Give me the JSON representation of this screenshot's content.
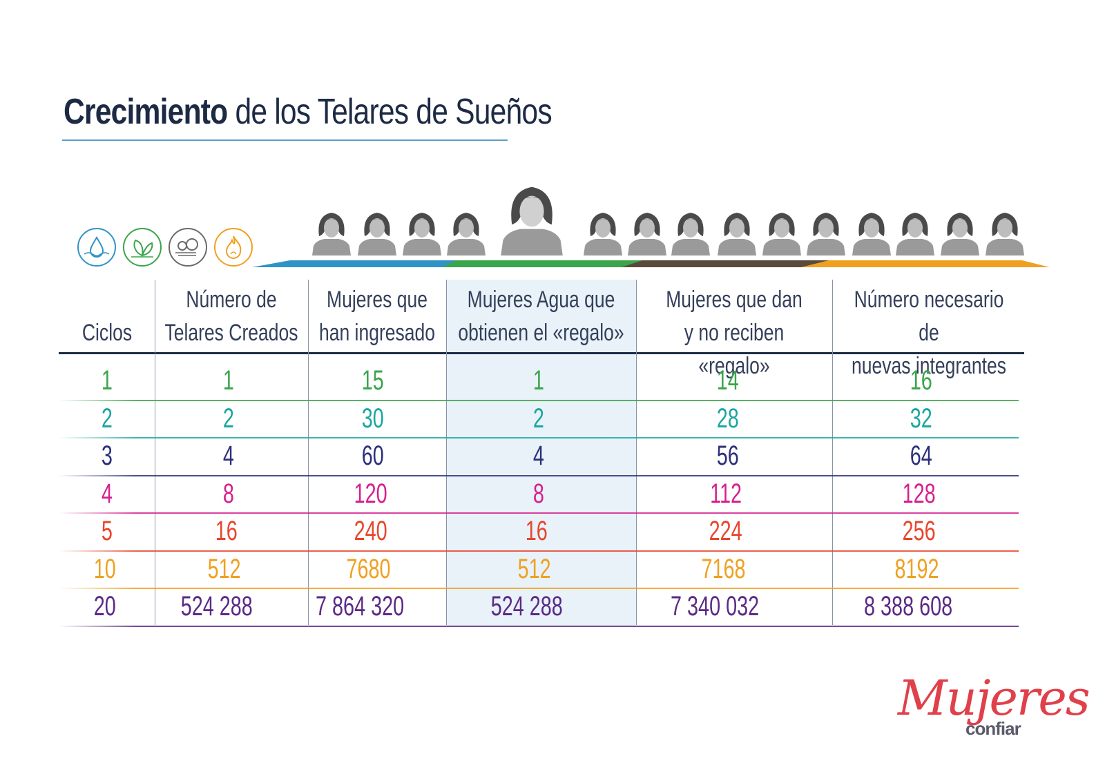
{
  "title": {
    "bold": "Crecimiento",
    "rest": "de los Telares de Sueños"
  },
  "icons": [
    {
      "name": "water-drop-icon",
      "color": "#2f93c6"
    },
    {
      "name": "leaf-icon",
      "color": "#3aa54a"
    },
    {
      "name": "wind-icon",
      "color": "#6a6a6a"
    },
    {
      "name": "fire-icon",
      "color": "#f0a020"
    }
  ],
  "colors": {
    "water": "#2f93c6",
    "earth": "#3aa54a",
    "air": "#5a4a3a",
    "fire": "#f0a020",
    "highlight": "#e8f2f8"
  },
  "chart_data": {
    "type": "table",
    "title": "Crecimiento de los Telares de Sueños",
    "columns": [
      "Ciclos",
      "Número de\nTelares Creados",
      "Mujeres que\nhan ingresado",
      "Mujeres Agua que\nobtienen el «regalo»",
      "Mujeres que dan\ny no reciben «regalo»",
      "Número necesario de\nnuevas integrantes"
    ],
    "rows": [
      {
        "values": [
          "1",
          "1",
          "15",
          "1",
          "14",
          "16"
        ],
        "color": "#3aa54a"
      },
      {
        "values": [
          "2",
          "2",
          "30",
          "2",
          "28",
          "32"
        ],
        "color": "#1aa6a0"
      },
      {
        "values": [
          "3",
          "4",
          "60",
          "4",
          "56",
          "64"
        ],
        "color": "#2b2f7a"
      },
      {
        "values": [
          "4",
          "8",
          "120",
          "8",
          "112",
          "128"
        ],
        "color": "#d61f8f"
      },
      {
        "values": [
          "5",
          "16",
          "240",
          "16",
          "224",
          "256"
        ],
        "color": "#e8452c"
      },
      {
        "values": [
          "10",
          "512",
          "7680",
          "512",
          "7168",
          "8192"
        ],
        "color": "#f0a020"
      },
      {
        "values": [
          "20",
          "524 288",
          "7 864 320",
          "524 288",
          "7 340 032",
          "8 388 608"
        ],
        "color": "#5b2a86"
      }
    ],
    "highlight_column": 3
  },
  "logo": {
    "main": "Mujeres",
    "sub": "confiar"
  }
}
